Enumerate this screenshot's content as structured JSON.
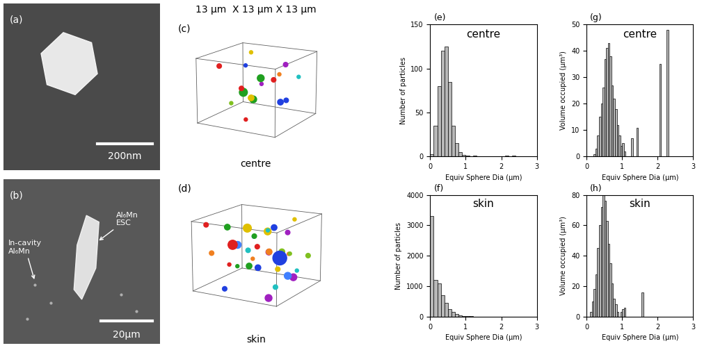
{
  "images": [
    {
      "panel": "(a)",
      "scale_bar": "200nm"
    },
    {
      "panel": "(b)",
      "scale_bar": "20µm",
      "annotations": [
        "In-cavity\nAl₆Mn",
        "Al₆Mn\nESC"
      ]
    }
  ],
  "volumes": {
    "title": "13 µm  X 13 µm X 13 µm",
    "size": 13,
    "panels": [
      {
        "panel": "(c)",
        "label": "centre",
        "x": [
          2,
          3.5,
          5,
          8,
          10,
          11,
          6,
          4,
          9,
          12,
          7,
          1.5,
          5.5,
          10.5,
          3,
          8.5,
          6.5
        ],
        "y": [
          3,
          8,
          10,
          2,
          5,
          11,
          6,
          12,
          9,
          3,
          1,
          7,
          4,
          8,
          10.5,
          11.5,
          3
        ],
        "z": [
          11,
          10,
          7,
          6,
          9,
          8,
          4,
          5,
          3,
          11,
          8,
          2,
          6,
          4,
          12,
          10,
          1
        ],
        "d": [
          0.4,
          0.3,
          0.6,
          0.5,
          0.4,
          0.3,
          0.6,
          0.3,
          0.5,
          0.3,
          0.4,
          0.3,
          0.7,
          0.4,
          0.3,
          0.4,
          0.3
        ],
        "colors": [
          "#e02020",
          "#2040e0",
          "#20a020",
          "#e0c000",
          "#e02020",
          "#20c0c0",
          "#20a020",
          "#a020c0",
          "#2040e0",
          "#f08020",
          "#e02020",
          "#80c020",
          "#20a020",
          "#2040e0",
          "#e0c000",
          "#a020c0",
          "#e02020"
        ]
      },
      {
        "panel": "(d)",
        "label": "skin",
        "x": [
          1,
          2.5,
          4,
          5.5,
          7,
          8.5,
          10,
          11.5,
          12.5,
          1.5,
          3,
          4.5,
          6,
          7.5,
          9,
          10.5,
          12,
          2,
          3.5,
          5,
          6.5,
          8,
          9.5,
          11,
          0.5,
          2.2,
          3.8,
          5.2,
          6.8,
          8.2,
          9.8,
          11.2,
          12.3,
          4.2,
          7.3,
          10.2
        ],
        "y": [
          2,
          5,
          8,
          11,
          3,
          6,
          9,
          12,
          4,
          7,
          10,
          1,
          4.5,
          7.5,
          10.5,
          2.5,
          5.5,
          8.5,
          11.5,
          3.5,
          6.5,
          9.5,
          12.5,
          1.5,
          4,
          7,
          10,
          2,
          5,
          8,
          11,
          3,
          6,
          9,
          12,
          6
        ],
        "z": [
          12,
          11,
          10,
          9,
          8,
          7,
          6,
          5,
          4,
          3,
          2,
          1,
          11.5,
          10.5,
          9.5,
          8.5,
          7.5,
          6.5,
          5.5,
          4.5,
          3.5,
          2.5,
          1.5,
          0.5,
          6,
          7,
          8,
          9,
          10,
          11,
          12,
          2,
          3,
          4,
          5,
          6.2
        ],
        "d": [
          0.4,
          0.5,
          0.3,
          0.6,
          0.4,
          0.5,
          0.3,
          0.4,
          0.6,
          0.3,
          0.5,
          0.4,
          0.7,
          0.3,
          0.4,
          0.5,
          0.3,
          0.6,
          0.4,
          0.3,
          0.5,
          0.4,
          0.3,
          0.6,
          0.4,
          0.5,
          0.3,
          0.8,
          0.4,
          0.5,
          0.3,
          0.4,
          0.6,
          0.3,
          0.5,
          1.2
        ],
        "colors": [
          "#e02020",
          "#20a020",
          "#2040e0",
          "#e0c000",
          "#20c0c0",
          "#a020c0",
          "#f08020",
          "#80c020",
          "#4080ff",
          "#e02020",
          "#20a020",
          "#2040e0",
          "#e0c000",
          "#20c0c0",
          "#a020c0",
          "#f08020",
          "#80c020",
          "#4080ff",
          "#e02020",
          "#20a020",
          "#2040e0",
          "#e0c000",
          "#20c0c0",
          "#a020c0",
          "#f08020",
          "#80c020",
          "#4080ff",
          "#e02020",
          "#20a020",
          "#2040e0",
          "#e0c000",
          "#20c0c0",
          "#a020c0",
          "#f08020",
          "#80c020",
          "#2040e0"
        ]
      }
    ]
  },
  "chart_data": [
    {
      "type": "histogram",
      "panel": "(e)",
      "title": "centre",
      "x_label": "Equiv Sphere Dia (µm)",
      "y_label": "Number of particles",
      "color": "#b8b8b8",
      "bins": [
        0,
        0.1,
        0.2,
        0.3,
        0.4,
        0.5,
        0.6,
        0.7,
        0.8,
        0.9,
        1.0,
        1.1,
        1.2,
        1.3,
        1.4,
        1.5,
        1.6,
        1.7,
        1.8,
        1.9,
        2.0,
        2.1,
        2.2,
        2.3,
        2.4,
        2.5,
        2.6,
        2.7,
        2.8,
        2.9,
        3.0
      ],
      "values": [
        3,
        35,
        80,
        120,
        125,
        85,
        35,
        15,
        5,
        2,
        1,
        0,
        1,
        0,
        0,
        0,
        0,
        0,
        0,
        0,
        0,
        1,
        0,
        1,
        0,
        0,
        0,
        0,
        0,
        0
      ],
      "xlim": [
        0,
        3
      ],
      "xticks": [
        0,
        1,
        2,
        3
      ],
      "ylim": [
        0,
        150
      ],
      "yticks": [
        0,
        50,
        100,
        150
      ]
    },
    {
      "type": "histogram",
      "panel": "(f)",
      "title": "skin",
      "x_label": "Equiv Sphere Dia (µm)",
      "y_label": "Number of particles",
      "color": "#b8b8b8",
      "bins": [
        0,
        0.1,
        0.2,
        0.3,
        0.4,
        0.5,
        0.6,
        0.7,
        0.8,
        0.9,
        1.0,
        1.1,
        1.2,
        1.3,
        1.4,
        1.5,
        1.6,
        1.7,
        1.8,
        1.9,
        2.0,
        2.1,
        2.2,
        2.3,
        2.4,
        2.5,
        2.6,
        2.7,
        2.8,
        2.9,
        3.0
      ],
      "values": [
        3300,
        1200,
        1100,
        700,
        450,
        250,
        150,
        80,
        50,
        30,
        20,
        10,
        5,
        3,
        2,
        3,
        0,
        0,
        0,
        0,
        0,
        0,
        0,
        0,
        0,
        0,
        0,
        0,
        0,
        0
      ],
      "xlim": [
        0,
        3
      ],
      "xticks": [
        0,
        1,
        2,
        3
      ],
      "ylim": [
        0,
        4000
      ],
      "yticks": [
        0,
        1000,
        2000,
        3000,
        4000
      ]
    },
    {
      "type": "histogram",
      "panel": "(g)",
      "title": "centre",
      "x_label": "Equiv Sphere Dia (µm)",
      "y_label": "Volume occupied (µm³)",
      "color": "#b8b8b8",
      "bins": [
        0,
        0.05,
        0.1,
        0.15,
        0.2,
        0.25,
        0.3,
        0.35,
        0.4,
        0.45,
        0.5,
        0.55,
        0.6,
        0.65,
        0.7,
        0.75,
        0.8,
        0.85,
        0.9,
        0.95,
        1.0,
        1.05,
        1.1,
        1.15,
        1.2,
        1.25,
        1.3,
        1.35,
        1.4,
        1.45,
        1.5,
        1.55,
        1.6,
        1.65,
        1.7,
        1.75,
        1.8,
        1.85,
        1.9,
        1.95,
        2.0,
        2.05,
        2.1,
        2.15,
        2.2,
        2.25,
        2.3,
        2.35,
        2.4,
        2.45,
        2.5,
        2.55,
        2.6,
        2.65,
        2.7,
        2.75,
        2.8,
        2.85,
        2.9,
        2.95,
        3.0
      ],
      "values": [
        0,
        0,
        0,
        0,
        1,
        3,
        8,
        15,
        20,
        26,
        37,
        41,
        43,
        38,
        27,
        22,
        18,
        12,
        8,
        4,
        5,
        2,
        0,
        0,
        0,
        7,
        0,
        0,
        11,
        0,
        0,
        0,
        0,
        0,
        0,
        0,
        0,
        0,
        0,
        0,
        0,
        35,
        0,
        0,
        0,
        48,
        0,
        0,
        0,
        0,
        0,
        0,
        0,
        0,
        0,
        0,
        0,
        0,
        0,
        0
      ],
      "xlim": [
        0,
        3
      ],
      "xticks": [
        0,
        1,
        2,
        3
      ],
      "ylim": [
        0,
        50
      ],
      "yticks": [
        0,
        10,
        20,
        30,
        40,
        50
      ]
    },
    {
      "type": "histogram",
      "panel": "(h)",
      "title": "skin",
      "x_label": "Equiv Sphere Dia (µm)",
      "y_label": "Volume occupied (µm³)",
      "color": "#b8b8b8",
      "bins": [
        0,
        0.05,
        0.1,
        0.15,
        0.2,
        0.25,
        0.3,
        0.35,
        0.4,
        0.45,
        0.5,
        0.55,
        0.6,
        0.65,
        0.7,
        0.75,
        0.8,
        0.85,
        0.9,
        0.95,
        1.0,
        1.05,
        1.1,
        1.15,
        1.2,
        1.25,
        1.3,
        1.35,
        1.4,
        1.45,
        1.5,
        1.55,
        1.6,
        1.65,
        1.7,
        1.75,
        1.8,
        1.85,
        1.9,
        1.95,
        2.0,
        2.05,
        2.1,
        2.15,
        2.2,
        2.25,
        2.3,
        2.35,
        2.4,
        2.45,
        2.5,
        2.55,
        2.6,
        2.65,
        2.7,
        2.75,
        2.8,
        2.85,
        2.9,
        2.95,
        3.0
      ],
      "values": [
        0,
        0,
        3,
        10,
        18,
        28,
        45,
        60,
        72,
        80,
        76,
        63,
        48,
        35,
        22,
        12,
        8,
        3,
        0,
        3,
        5,
        6,
        0,
        0,
        0,
        0,
        0,
        0,
        0,
        0,
        0,
        16,
        0,
        0,
        0,
        0,
        0,
        0,
        0,
        0,
        0,
        0,
        0,
        0,
        0,
        0,
        0,
        0,
        0,
        0,
        0,
        0,
        0,
        0,
        0,
        0,
        0,
        0,
        0,
        0
      ],
      "xlim": [
        0,
        3
      ],
      "xticks": [
        0,
        1,
        2,
        3
      ],
      "ylim": [
        0,
        80
      ],
      "yticks": [
        0,
        20,
        40,
        60,
        80
      ]
    }
  ]
}
